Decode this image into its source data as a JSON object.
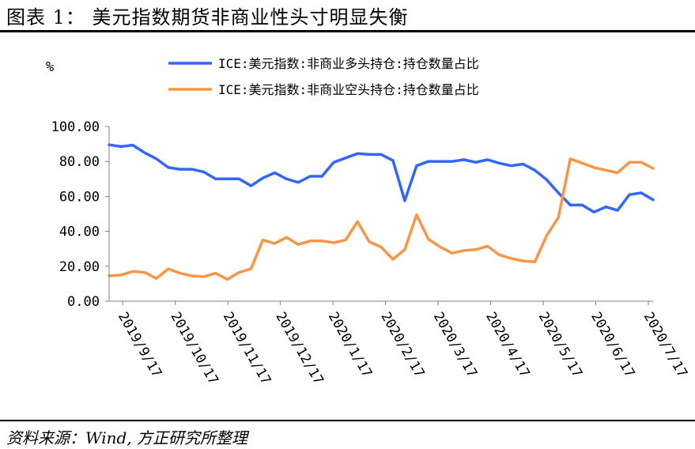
{
  "figure": {
    "title": "图表 1：  美元指数期货非商业性头寸明显失衡",
    "source": "资料来源：Wind, 方正研究所整理"
  },
  "chart_data": {
    "type": "line",
    "ylabel": "%",
    "ylim": [
      0,
      100
    ],
    "y_ticks": [
      "100.00",
      "80.00",
      "60.00",
      "40.00",
      "20.00",
      "0.00"
    ],
    "x_ticks": [
      "2019/9/17",
      "2019/10/17",
      "2019/11/17",
      "2019/12/17",
      "2020/1/17",
      "2020/2/17",
      "2020/3/17",
      "2020/4/17",
      "2020/5/17",
      "2020/6/17",
      "2020/7/17"
    ],
    "legend_position": "top",
    "series": [
      {
        "name": "ICE:美元指数:非商业多头持仓:持仓数量占比",
        "color": "#3366ff",
        "values": [
          89.5,
          88.5,
          89.3,
          85.0,
          81.5,
          76.5,
          75.5,
          75.5,
          74.0,
          70.0,
          70.0,
          70.0,
          66.0,
          70.5,
          73.5,
          70.0,
          68.0,
          71.5,
          71.5,
          79.5,
          82.0,
          84.5,
          84.0,
          84.0,
          80.5,
          57.5,
          77.5,
          80.0,
          80.0,
          80.0,
          81.0,
          79.5,
          81.0,
          79.0,
          77.5,
          78.5,
          75.0,
          69.5,
          62.0,
          55.0,
          55.0,
          51.0,
          54.0,
          52.0,
          61.0,
          62.0,
          58.0
        ]
      },
      {
        "name": "ICE:美元指数:非商业空头持仓:持仓数量占比",
        "color": "#f79646",
        "values": [
          14.5,
          15.0,
          17.0,
          16.5,
          13.0,
          18.5,
          16.0,
          14.5,
          14.0,
          16.0,
          12.5,
          16.5,
          18.5,
          35.0,
          33.0,
          36.5,
          32.5,
          34.5,
          34.5,
          33.5,
          35.0,
          45.5,
          34.0,
          31.0,
          24.0,
          29.5,
          49.5,
          35.5,
          31.0,
          27.5,
          29.0,
          29.5,
          31.5,
          26.5,
          24.5,
          23.0,
          22.5,
          37.5,
          48.0,
          81.5,
          79.0,
          76.5,
          75.0,
          73.5,
          79.5,
          79.5,
          76.0
        ]
      }
    ]
  }
}
